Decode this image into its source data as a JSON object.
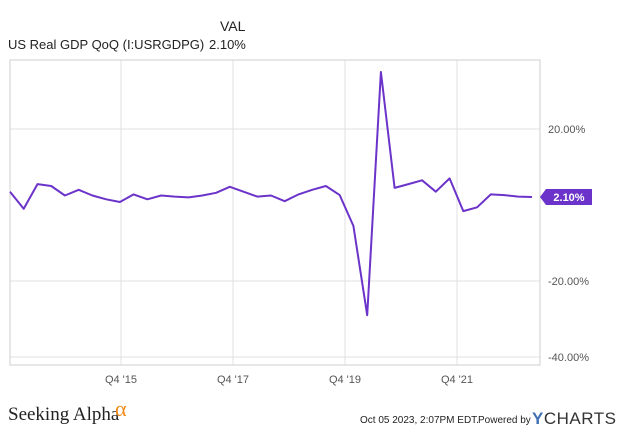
{
  "legend": {
    "value_header": "VAL",
    "series_name": "US Real GDP QoQ (I:USRGDPG)",
    "series_value": "2.10%"
  },
  "colors": {
    "series": "#6b33c9",
    "grid": "#e0e0e0",
    "axis": "#999999",
    "alpha_mark": "#f08a1c",
    "ycharts_y": "#3e6fb3"
  },
  "chart_data": {
    "type": "line",
    "ylim": [
      -40,
      40
    ],
    "y_ticks": [
      {
        "value": 20,
        "label": "20.00%"
      },
      {
        "value": -20,
        "label": "-20.00%"
      },
      {
        "value": -40,
        "label": "-40.00%"
      }
    ],
    "x_ticks": [
      "Q4 '15",
      "Q4 '17",
      "Q4 '19",
      "Q4 '21"
    ],
    "series": [
      {
        "values": [
          3.5,
          -1.0,
          5.5,
          5.0,
          2.5,
          4.0,
          2.5,
          1.5,
          0.8,
          2.8,
          1.5,
          2.5,
          2.2,
          2.0,
          2.5,
          3.2,
          4.8,
          3.5,
          2.2,
          2.5,
          1.0,
          2.8,
          4.0,
          5.0,
          2.6,
          -5.5,
          -29.0,
          35.0,
          4.5,
          5.5,
          6.5,
          3.5,
          7.0,
          -1.6,
          -0.6,
          2.8,
          2.6,
          2.2,
          2.1
        ],
        "last_value_label": "2.10%"
      }
    ]
  },
  "footer": {
    "brand_left": "Seeking Alpha",
    "alpha_symbol": "α",
    "timestamp": "Oct 05 2023, 2:07PM EDT.",
    "powered_by": "Powered by",
    "ycharts_y": "Y",
    "ycharts_rest": "CHARTS"
  }
}
